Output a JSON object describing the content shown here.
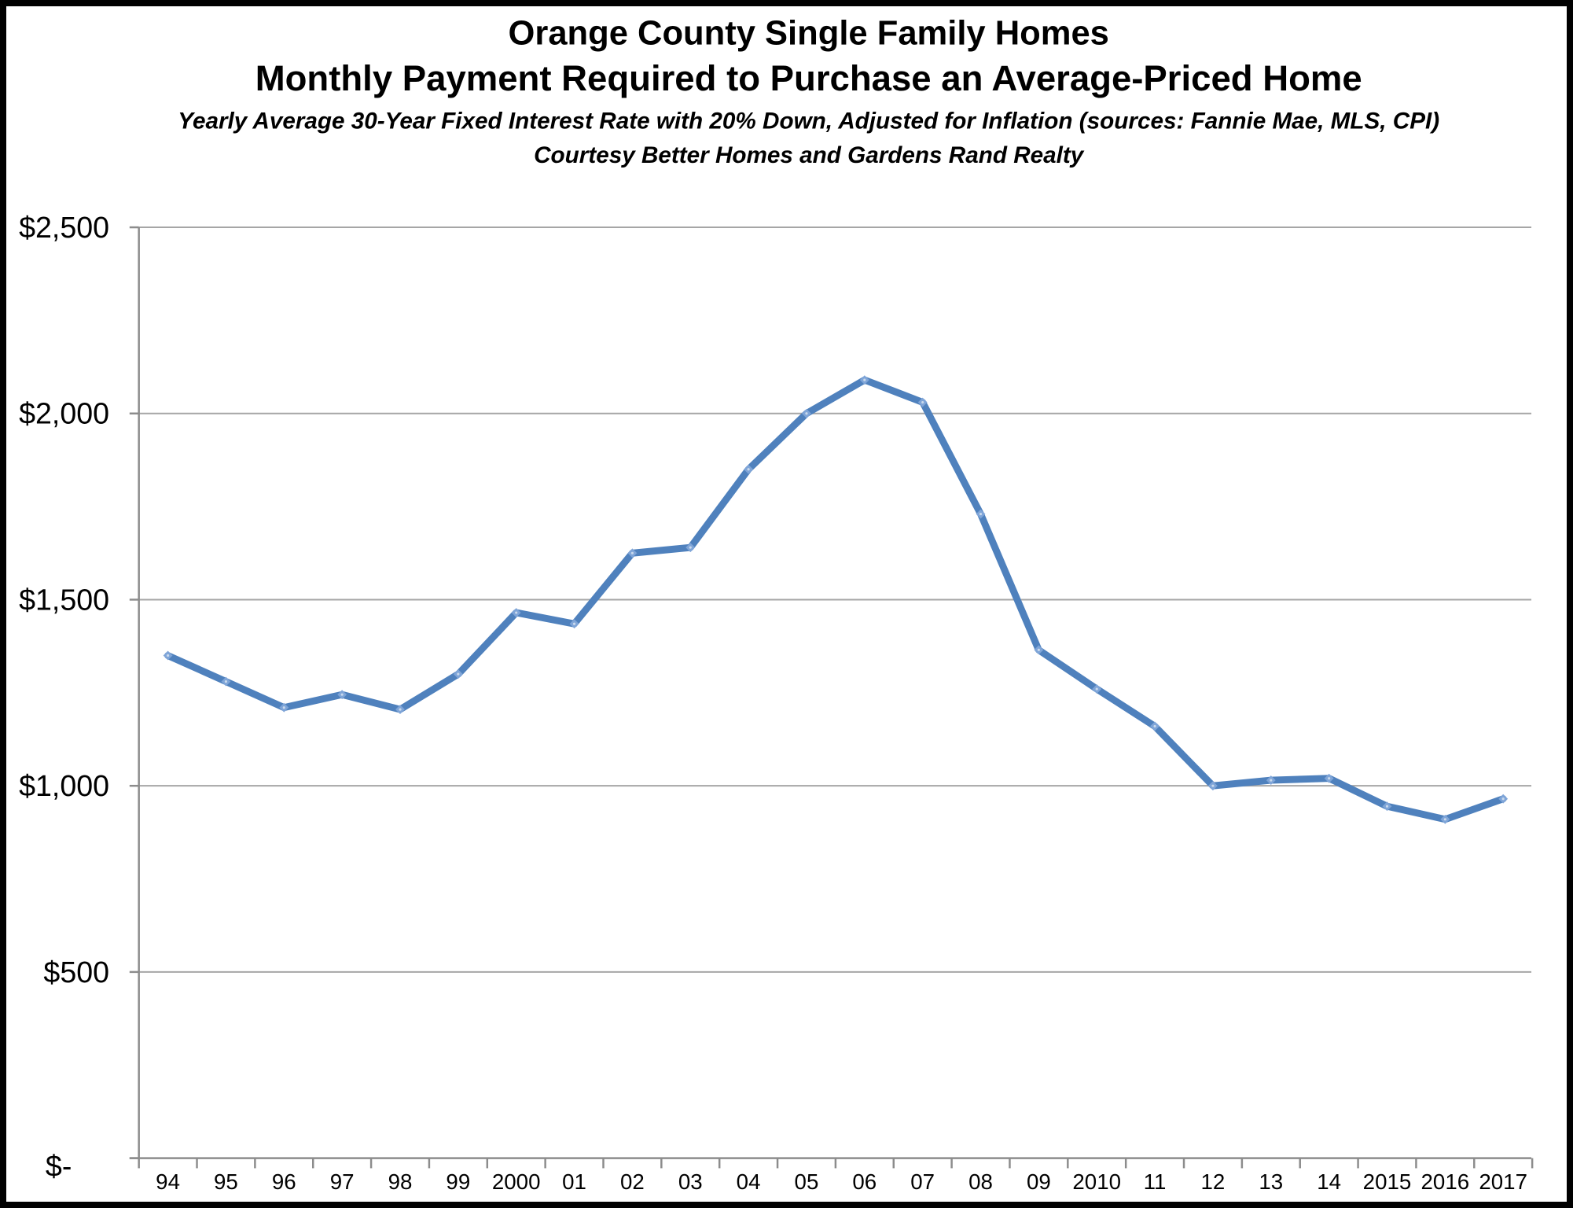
{
  "page": {
    "background_color": "#FFFFFF",
    "border_color": "#000000"
  },
  "header": {
    "title_line1": "Orange County Single Family Homes",
    "title_line2": "Monthly Payment Required to Purchase an Average-Priced Home",
    "subtitle": "Yearly Average 30-Year Fixed Interest Rate with 20% Down, Adjusted for Inflation (sources: Fannie Mae, MLS, CPI)",
    "courtesy": "Courtesy Better Homes and Gardens Rand Realty",
    "courtesy_color": "#12A012"
  },
  "chart_data": {
    "type": "line",
    "title": "Orange County Single Family Homes — Monthly Payment Required to Purchase an Average-Priced Home",
    "xlabel": "",
    "ylabel": "",
    "categories": [
      "94",
      "95",
      "96",
      "97",
      "98",
      "99",
      "2000",
      "01",
      "02",
      "03",
      "04",
      "05",
      "06",
      "07",
      "08",
      "09",
      "2010",
      "11",
      "12",
      "13",
      "14",
      "2015",
      "2016",
      "2017"
    ],
    "values": [
      1350,
      1280,
      1210,
      1245,
      1205,
      1300,
      1465,
      1435,
      1625,
      1640,
      1850,
      2000,
      2090,
      2030,
      1730,
      1365,
      1260,
      1160,
      1000,
      1015,
      1020,
      945,
      910,
      965
    ],
    "y_ticks": [
      {
        "label": "$2,500",
        "value": 2500
      },
      {
        "label": "$2,000",
        "value": 2000
      },
      {
        "label": "$1,500",
        "value": 1500
      },
      {
        "label": "$1,000",
        "value": 1000
      },
      {
        "label": "$500",
        "value": 500
      },
      {
        "label": "$-",
        "value": 0
      }
    ],
    "ylim": [
      0,
      2500
    ],
    "grid": "horizontal",
    "legend": "none",
    "line_color": "#4F81BD",
    "marker_color": "#7FA5D8",
    "gridline_color": "#A6A6A6",
    "axis_color": "#8C8C8C",
    "label_color": "#000000"
  }
}
